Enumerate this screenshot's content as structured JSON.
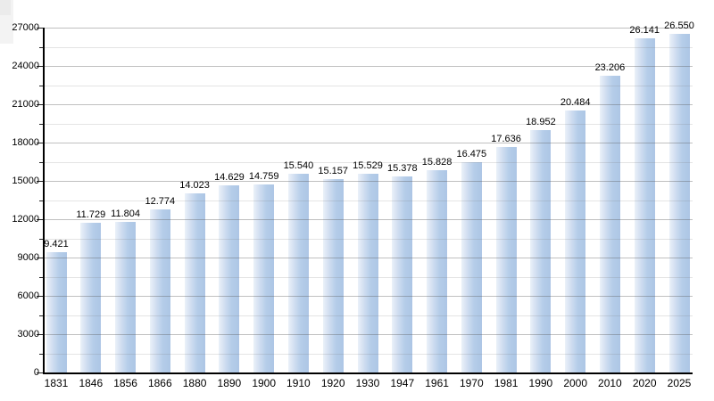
{
  "chart_data": {
    "type": "bar",
    "title": "",
    "xlabel": "",
    "ylabel": "",
    "categories": [
      "1831",
      "1846",
      "1856",
      "1866",
      "1880",
      "1890",
      "1900",
      "1910",
      "1920",
      "1930",
      "1947",
      "1961",
      "1970",
      "1981",
      "1990",
      "2000",
      "2010",
      "2020",
      "2025"
    ],
    "values": [
      9421,
      11729,
      11804,
      12774,
      14023,
      14629,
      14759,
      15540,
      15157,
      15529,
      15378,
      15828,
      16475,
      17636,
      18952,
      20484,
      23206,
      26141,
      26550
    ],
    "value_labels": [
      "9.421",
      "11.729",
      "11.804",
      "12.774",
      "14.023",
      "14.629",
      "14.759",
      "15.540",
      "15.157",
      "15.529",
      "15.378",
      "15.828",
      "16.475",
      "17.636",
      "18.952",
      "20.484",
      "23.206",
      "26.141",
      "26.550"
    ],
    "ylim": [
      0,
      27000
    ],
    "y_major_step": 3000,
    "y_minor_step": 1500,
    "y_tick_labels": [
      "0",
      "3000",
      "6000",
      "9000",
      "12000",
      "15000",
      "18000",
      "21000",
      "24000",
      "27000"
    ],
    "grid": "major+minor horizontal",
    "legend": "none",
    "colors": {
      "bar_fill": "#b5cde9",
      "bar_fill_light_edge": "#ebf1f9",
      "major_gridline": "#c6c6c6",
      "minor_gridline": "#e1e1e1",
      "axis": "#000000",
      "text": "#000000",
      "background": "#ffffff"
    }
  }
}
